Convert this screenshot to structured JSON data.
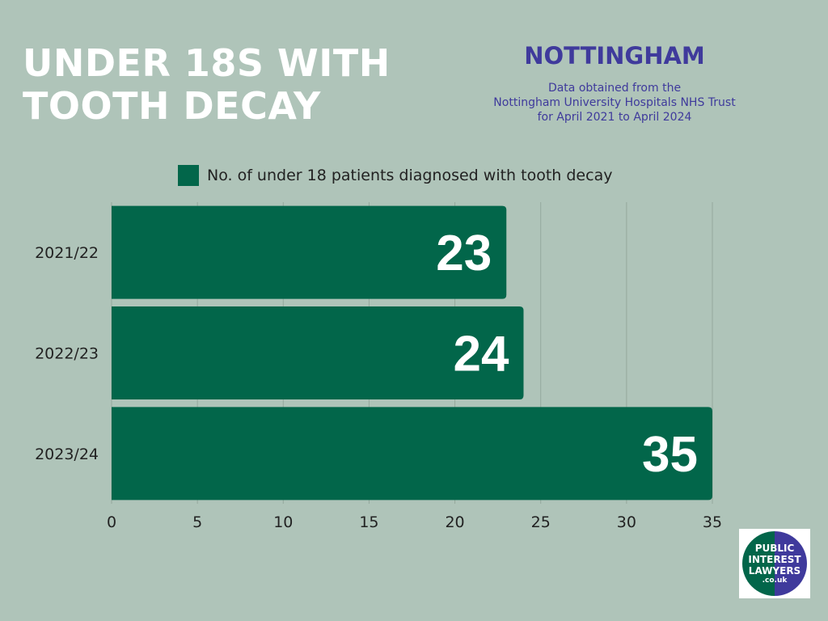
{
  "header": {
    "title_line1": "UNDER 18S WITH",
    "title_line2": "TOOTH DECAY",
    "region": "NOTTINGHAM",
    "source_line1": "Data obtained from the",
    "source_line2": "Nottingham University Hospitals NHS Trust",
    "source_line3": "for April 2021 to April 2024"
  },
  "logo": {
    "line1": "PUBLIC",
    "line2": "INTEREST",
    "line3": "LAWYERS",
    "line4": ".co.uk"
  },
  "colors": {
    "background": "#afc4b9",
    "bar": "#02664a",
    "accent": "#3f3a9c",
    "gridline": "#95a89d"
  },
  "chart_data": {
    "type": "bar",
    "orientation": "horizontal",
    "categories": [
      "2021/22",
      "2022/23",
      "2023/24"
    ],
    "series": [
      {
        "name": "No. of under 18 patients diagnosed with tooth decay",
        "values": [
          23,
          24,
          35
        ]
      }
    ],
    "xlim": [
      0,
      35
    ],
    "xticks": [
      0,
      5,
      10,
      15,
      20,
      25,
      30,
      35
    ],
    "grid": true,
    "legend_position": "top"
  }
}
